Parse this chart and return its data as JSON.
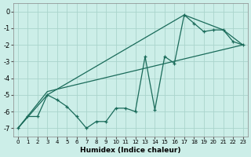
{
  "xlabel": "Humidex (Indice chaleur)",
  "xlim": [
    -0.5,
    23.5
  ],
  "ylim": [
    -7.5,
    0.5
  ],
  "yticks": [
    0,
    -1,
    -2,
    -3,
    -4,
    -5,
    -6,
    -7
  ],
  "xticks": [
    0,
    1,
    2,
    3,
    4,
    5,
    6,
    7,
    8,
    9,
    10,
    11,
    12,
    13,
    14,
    15,
    16,
    17,
    18,
    19,
    20,
    21,
    22,
    23
  ],
  "background_color": "#cceee8",
  "grid_color": "#aad4cc",
  "line_color": "#1a6b5a",
  "series_main": {
    "x": [
      0,
      1,
      2,
      3,
      4,
      5,
      6,
      7,
      8,
      9,
      10,
      11,
      12,
      13,
      14,
      15,
      16,
      17,
      18,
      19,
      20,
      21,
      22,
      23
    ],
    "y": [
      -7.0,
      -6.3,
      -6.3,
      -5.0,
      -5.3,
      -5.7,
      -6.3,
      -7.0,
      -6.6,
      -6.6,
      -5.8,
      -5.8,
      -6.0,
      -2.7,
      -5.9,
      -2.7,
      -3.1,
      -0.2,
      -0.7,
      -1.2,
      -1.1,
      -1.1,
      -1.8,
      -2.0
    ]
  },
  "series_trend1": {
    "x": [
      0,
      3,
      17,
      21,
      23
    ],
    "y": [
      -7.0,
      -5.0,
      -0.2,
      -1.1,
      -2.0
    ]
  },
  "series_trend2": {
    "x": [
      0,
      3,
      23
    ],
    "y": [
      -7.0,
      -4.8,
      -2.0
    ]
  }
}
